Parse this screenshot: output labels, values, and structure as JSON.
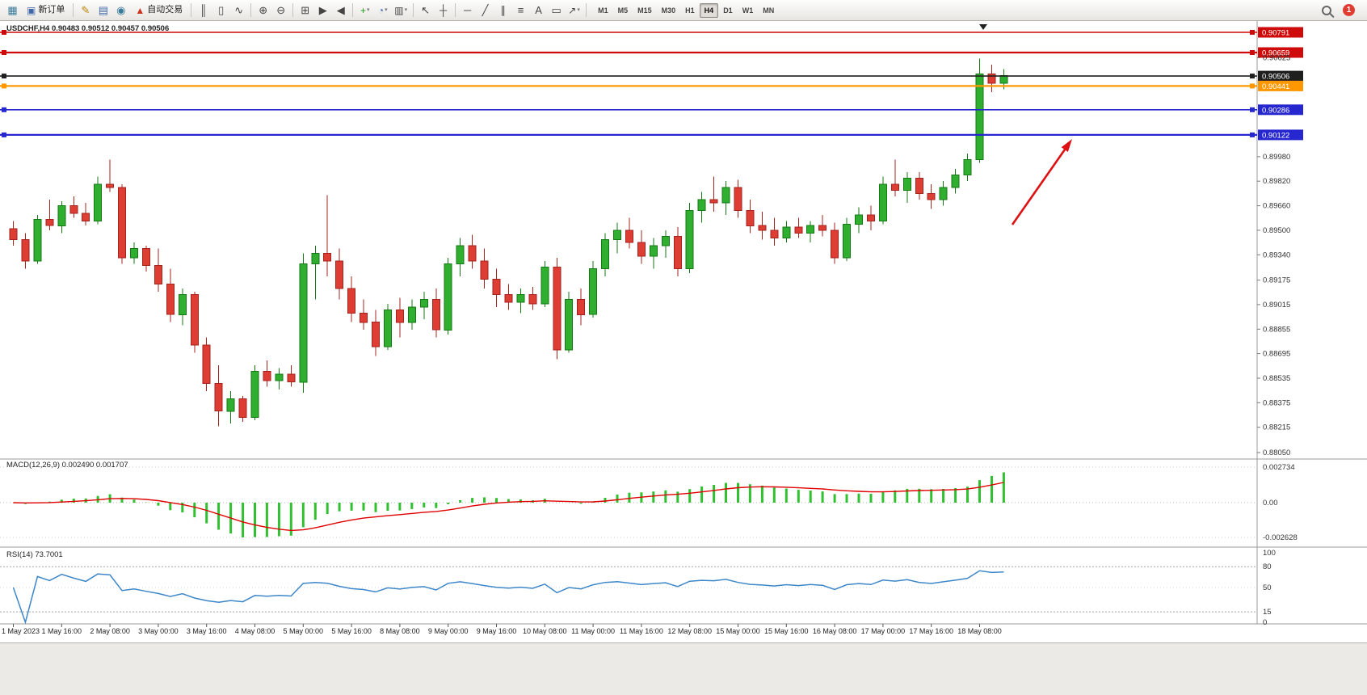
{
  "toolbar": {
    "new_order_label": "新订单",
    "autotrading_label": "自动交易",
    "timeframes": [
      "M1",
      "M5",
      "M15",
      "M30",
      "H1",
      "H4",
      "D1",
      "W1",
      "MN"
    ],
    "active_timeframe": "H4",
    "notification_count": "1"
  },
  "icons": {
    "chart_window": "▦",
    "new_order": "▣",
    "metaeditor": "✎",
    "news": "▤",
    "community": "◉",
    "autotrading": "▲",
    "bars": "║",
    "candles": "▯",
    "line_chart": "∿",
    "zoom_in": "⊕",
    "zoom_out": "⊖",
    "tile": "⊞",
    "autoscroll": "▶",
    "shift": "◀",
    "indicators": "+",
    "periods": "◔",
    "templates": "▥",
    "caret": "▾",
    "cursor": "↖",
    "crosshair": "┼",
    "hline_tool": "─",
    "trendline": "╱",
    "channel": "∥",
    "fibonacci": "≡",
    "text_tool": "A",
    "shapes": "▭",
    "arrows": "↗"
  },
  "chart": {
    "title": "USDCHF,H4 0.90483 0.90512 0.90457 0.90506",
    "symbol": "USDCHF",
    "period": "H4"
  },
  "chart_data": {
    "type": "candlestick",
    "symbol": "USDCHF",
    "timeframe": "H4",
    "ohlc_display": {
      "open": 0.90483,
      "high": 0.90512,
      "low": 0.90457,
      "close": 0.90506
    },
    "current_price": 0.90506,
    "price_axis": {
      "max": 0.90791,
      "min": 0.8805,
      "plain_ticks": [
        "0.90625",
        "0.89980",
        "0.89820",
        "0.89660",
        "0.89500",
        "0.89340",
        "0.89175",
        "0.89015",
        "0.88855",
        "0.88695",
        "0.88535",
        "0.88375",
        "0.88215",
        "0.88050"
      ]
    },
    "hlines": [
      {
        "price": 0.90791,
        "label": "0.90791",
        "color": "#cf0a0a",
        "width": 1.6
      },
      {
        "price": 0.90659,
        "label": "0.90659",
        "color": "#cf0a0a",
        "width": 2.2
      },
      {
        "price": 0.90506,
        "label": "0.90506",
        "color": "#1f1f1f",
        "width": 1.6
      },
      {
        "price": 0.90441,
        "label": "0.90441",
        "color": "#ff9800",
        "width": 2.2
      },
      {
        "price": 0.90286,
        "label": "0.90286",
        "color": "#2727cf",
        "width": 1.6
      },
      {
        "price": 0.90122,
        "label": "0.90122",
        "color": "#2727cf",
        "width": 2.2
      }
    ],
    "time_labels": [
      "1 May 2023",
      "1 May 16:00",
      "2 May 08:00",
      "3 May 00:00",
      "3 May 16:00",
      "4 May 08:00",
      "5 May 00:00",
      "5 May 16:00",
      "8 May 08:00",
      "9 May 00:00",
      "9 May 16:00",
      "10 May 08:00",
      "11 May 00:00",
      "11 May 16:00",
      "12 May 08:00",
      "15 May 00:00",
      "15 May 16:00",
      "16 May 08:00",
      "17 May 00:00",
      "17 May 16:00",
      "18 May 08:00"
    ],
    "candles": [
      [
        0.8951,
        0.8956,
        0.894,
        0.8944
      ],
      [
        0.8944,
        0.8948,
        0.8925,
        0.893
      ],
      [
        0.893,
        0.896,
        0.8928,
        0.8957
      ],
      [
        0.8957,
        0.897,
        0.895,
        0.8953
      ],
      [
        0.8953,
        0.8969,
        0.8948,
        0.8966
      ],
      [
        0.8966,
        0.8972,
        0.8958,
        0.8961
      ],
      [
        0.8961,
        0.8968,
        0.8953,
        0.8956
      ],
      [
        0.8956,
        0.8985,
        0.8954,
        0.898
      ],
      [
        0.898,
        0.8996,
        0.8975,
        0.8978
      ],
      [
        0.8978,
        0.898,
        0.8928,
        0.8932
      ],
      [
        0.8932,
        0.8942,
        0.8928,
        0.8938
      ],
      [
        0.8938,
        0.894,
        0.8923,
        0.8927
      ],
      [
        0.8927,
        0.8938,
        0.891,
        0.8915
      ],
      [
        0.8915,
        0.8925,
        0.889,
        0.8895
      ],
      [
        0.8895,
        0.8912,
        0.8888,
        0.8908
      ],
      [
        0.8908,
        0.891,
        0.887,
        0.8875
      ],
      [
        0.8875,
        0.888,
        0.8845,
        0.885
      ],
      [
        0.885,
        0.8862,
        0.8822,
        0.8832
      ],
      [
        0.8832,
        0.8845,
        0.8824,
        0.884
      ],
      [
        0.884,
        0.8842,
        0.8825,
        0.8828
      ],
      [
        0.8828,
        0.8862,
        0.8826,
        0.8858
      ],
      [
        0.8858,
        0.8865,
        0.8848,
        0.8852
      ],
      [
        0.8852,
        0.886,
        0.8846,
        0.8856
      ],
      [
        0.8856,
        0.8862,
        0.8848,
        0.8851
      ],
      [
        0.8851,
        0.8935,
        0.8844,
        0.8928
      ],
      [
        0.8928,
        0.894,
        0.8905,
        0.8935
      ],
      [
        0.8935,
        0.8973,
        0.892,
        0.893
      ],
      [
        0.893,
        0.8938,
        0.8905,
        0.8912
      ],
      [
        0.8912,
        0.892,
        0.889,
        0.8896
      ],
      [
        0.8896,
        0.8905,
        0.8885,
        0.889
      ],
      [
        0.889,
        0.8898,
        0.8868,
        0.8874
      ],
      [
        0.8874,
        0.8902,
        0.8872,
        0.8898
      ],
      [
        0.8898,
        0.8906,
        0.888,
        0.889
      ],
      [
        0.889,
        0.8905,
        0.8885,
        0.89
      ],
      [
        0.89,
        0.891,
        0.8892,
        0.8905
      ],
      [
        0.8905,
        0.8912,
        0.888,
        0.8885
      ],
      [
        0.8885,
        0.8932,
        0.8882,
        0.8928
      ],
      [
        0.8928,
        0.8945,
        0.892,
        0.894
      ],
      [
        0.894,
        0.8947,
        0.8925,
        0.893
      ],
      [
        0.893,
        0.8938,
        0.8912,
        0.8918
      ],
      [
        0.8918,
        0.8925,
        0.89,
        0.8908
      ],
      [
        0.8908,
        0.8915,
        0.8898,
        0.8903
      ],
      [
        0.8903,
        0.8912,
        0.8896,
        0.8908
      ],
      [
        0.8908,
        0.8913,
        0.8898,
        0.8902
      ],
      [
        0.8902,
        0.893,
        0.89,
        0.8926
      ],
      [
        0.8926,
        0.8932,
        0.8866,
        0.8872
      ],
      [
        0.8872,
        0.891,
        0.887,
        0.8905
      ],
      [
        0.8905,
        0.8912,
        0.8888,
        0.8895
      ],
      [
        0.8895,
        0.893,
        0.8893,
        0.8925
      ],
      [
        0.8925,
        0.8948,
        0.892,
        0.8944
      ],
      [
        0.8944,
        0.8955,
        0.8935,
        0.895
      ],
      [
        0.895,
        0.8958,
        0.8938,
        0.8942
      ],
      [
        0.8942,
        0.895,
        0.8928,
        0.8933
      ],
      [
        0.8933,
        0.8945,
        0.8925,
        0.894
      ],
      [
        0.894,
        0.895,
        0.8932,
        0.8946
      ],
      [
        0.8946,
        0.8952,
        0.892,
        0.8925
      ],
      [
        0.8925,
        0.8968,
        0.8922,
        0.8963
      ],
      [
        0.8963,
        0.8975,
        0.8955,
        0.897
      ],
      [
        0.897,
        0.8985,
        0.8962,
        0.8968
      ],
      [
        0.8968,
        0.8982,
        0.896,
        0.8978
      ],
      [
        0.8978,
        0.8983,
        0.8958,
        0.8963
      ],
      [
        0.8963,
        0.897,
        0.8948,
        0.8953
      ],
      [
        0.8953,
        0.8962,
        0.8944,
        0.895
      ],
      [
        0.895,
        0.8958,
        0.894,
        0.8945
      ],
      [
        0.8945,
        0.8956,
        0.8942,
        0.8952
      ],
      [
        0.8952,
        0.8958,
        0.8945,
        0.8948
      ],
      [
        0.8948,
        0.8956,
        0.8942,
        0.8953
      ],
      [
        0.8953,
        0.896,
        0.8946,
        0.895
      ],
      [
        0.895,
        0.8955,
        0.8928,
        0.8932
      ],
      [
        0.8932,
        0.8958,
        0.893,
        0.8954
      ],
      [
        0.8954,
        0.8965,
        0.8948,
        0.896
      ],
      [
        0.896,
        0.8966,
        0.895,
        0.8956
      ],
      [
        0.8956,
        0.8985,
        0.8954,
        0.898
      ],
      [
        0.898,
        0.8996,
        0.8972,
        0.8976
      ],
      [
        0.8976,
        0.8988,
        0.8968,
        0.8984
      ],
      [
        0.8984,
        0.8988,
        0.897,
        0.8974
      ],
      [
        0.8974,
        0.898,
        0.8964,
        0.897
      ],
      [
        0.897,
        0.8982,
        0.8966,
        0.8978
      ],
      [
        0.8978,
        0.899,
        0.8974,
        0.8986
      ],
      [
        0.8986,
        0.9,
        0.8982,
        0.8996
      ],
      [
        0.8996,
        0.9062,
        0.8994,
        0.9052
      ],
      [
        0.9052,
        0.9058,
        0.904,
        0.9046
      ],
      [
        0.9046,
        0.9055,
        0.9042,
        0.9051
      ]
    ],
    "macd": {
      "label": "MACD(12,26,9) 0.002490 0.001707",
      "fast": 12,
      "slow": 26,
      "signal_period": 9,
      "main_value": 0.00249,
      "signal_value": 0.001707,
      "axis_labels": [
        "0.002734",
        "0.00",
        "-0.002628"
      ],
      "histogram_color": "#30c030",
      "signal_color": "#e00000"
    },
    "rsi": {
      "label": "RSI(14) 73.7001",
      "period": 14,
      "value": 73.7001,
      "levels": [
        "100",
        "80",
        "50",
        "15",
        "0"
      ],
      "line_color": "#3d87c9"
    },
    "annotation": {
      "type": "arrow",
      "direction": "up-right",
      "color": "#dd1111"
    }
  }
}
